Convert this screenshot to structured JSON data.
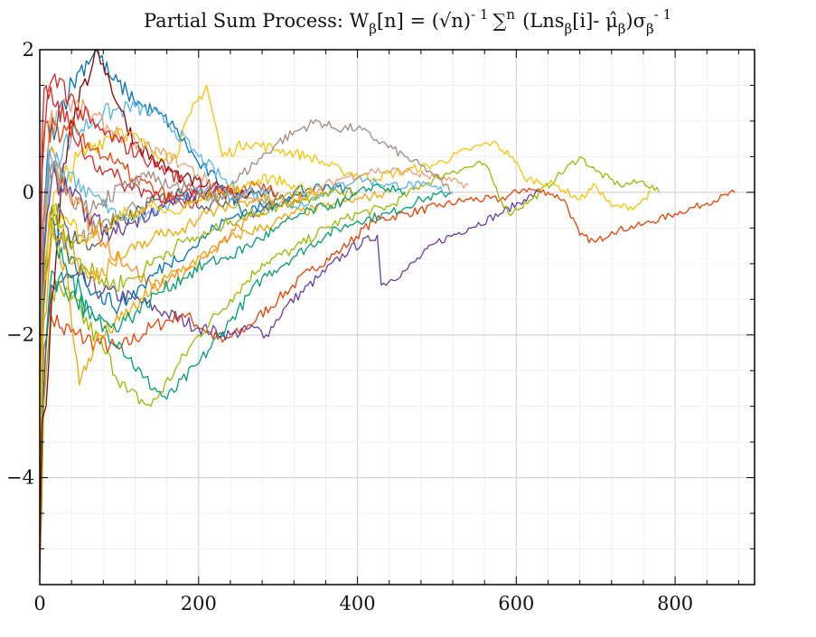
{
  "chart_data": {
    "type": "line",
    "title": "Partial Sum Process: W",
    "title_parts": {
      "w_sub": "β",
      "bracket_n": "[n] = (√n)",
      "exp1": "- 1",
      "sum": "∑",
      "sum_sup": "n",
      "lns": "(Lns",
      "lns_sub": "β",
      "bracket_i": "[i]- μ̂",
      "mu_sub": "β",
      "sigma": ")σ",
      "sigma_sub": "β",
      "exp2": "- 1"
    },
    "xlabel": "",
    "ylabel": "",
    "xlim": [
      0,
      900
    ],
    "ylim": [
      -5.5,
      2.0
    ],
    "x_ticks": [
      0,
      200,
      400,
      600,
      800
    ],
    "x_tick_labels": [
      "0",
      "200",
      "400",
      "600",
      "800"
    ],
    "y_ticks": [
      -4,
      -2,
      0,
      2
    ],
    "y_tick_labels": [
      "−4",
      "−2",
      "0",
      "2"
    ],
    "grid": true,
    "legend": "none",
    "colors": [
      "#0072B2",
      "#F0A500",
      "#009E73",
      "#E84000",
      "#6A3D9A",
      "#8B0000",
      "#56B4E9",
      "#F5C400",
      "#9EB800",
      "#A08B80",
      "#E8A070",
      "#D62728",
      "#FF8C1A",
      "#5A5A5A"
    ],
    "series": [
      {
        "color": "#E84000",
        "x": [
          0,
          5,
          12,
          25,
          45,
          70,
          100,
          140,
          180,
          230,
          260,
          300,
          340,
          380,
          420,
          460,
          500,
          540,
          580,
          610,
          640,
          660,
          680,
          700,
          720,
          760,
          800,
          840,
          875
        ],
        "y": [
          -5.3,
          -2.8,
          -1.6,
          -1.9,
          -2.0,
          -2.1,
          -2.2,
          -1.9,
          -1.7,
          -2.1,
          -1.9,
          -1.5,
          -1.1,
          -0.8,
          -0.4,
          -0.3,
          -0.2,
          -0.1,
          -0.1,
          0.05,
          0.0,
          -0.1,
          -0.6,
          -0.7,
          -0.55,
          -0.45,
          -0.3,
          -0.15,
          0.0
        ]
      },
      {
        "color": "#6A3D9A",
        "x": [
          0,
          6,
          15,
          40,
          80,
          120,
          160,
          200,
          240,
          270,
          285,
          310,
          350,
          390,
          425,
          430,
          460,
          500,
          540,
          580,
          610,
          630
        ],
        "y": [
          -4.8,
          -2.5,
          -1.3,
          -1.2,
          -1.4,
          -1.5,
          -1.7,
          -1.9,
          -2.0,
          -1.9,
          -2.0,
          -1.6,
          -1.2,
          -0.8,
          -0.6,
          -1.3,
          -1.1,
          -0.7,
          -0.5,
          -0.3,
          -0.1,
          0.0
        ]
      },
      {
        "color": "#9EB800",
        "x": [
          0,
          5,
          15,
          40,
          80,
          110,
          140,
          170,
          200,
          240,
          280,
          320,
          360,
          400,
          440,
          480,
          520,
          560,
          590,
          620,
          650,
          680,
          700,
          730,
          760,
          780
        ],
        "y": [
          -5.1,
          -3.0,
          -1.4,
          -1.5,
          -2.2,
          -2.8,
          -3.0,
          -2.5,
          -2.0,
          -1.5,
          -1.0,
          -0.8,
          -0.5,
          -0.3,
          -0.2,
          0.1,
          0.3,
          0.4,
          -0.3,
          -0.1,
          0.2,
          0.5,
          0.3,
          0.1,
          0.15,
          0.0
        ]
      },
      {
        "color": "#009E73",
        "x": [
          0,
          5,
          15,
          40,
          70,
          100,
          130,
          160,
          200,
          240,
          280,
          320,
          360,
          400,
          440,
          480,
          520
        ],
        "y": [
          -4.0,
          -2.2,
          -1.1,
          -1.4,
          -1.8,
          -2.1,
          -2.6,
          -2.9,
          -2.4,
          -1.8,
          -1.2,
          -0.9,
          -0.6,
          -0.4,
          -0.3,
          -0.1,
          0.0
        ]
      },
      {
        "color": "#F5C400",
        "x": [
          0,
          4,
          12,
          30,
          60,
          100,
          140,
          170,
          190,
          210,
          230,
          260,
          300,
          340,
          380,
          420,
          460,
          500,
          540,
          570,
          595,
          610,
          650,
          680,
          700,
          720,
          750,
          770
        ],
        "y": [
          -3.8,
          -1.8,
          -0.3,
          0.2,
          0.6,
          0.9,
          0.6,
          0.5,
          1.1,
          1.5,
          0.5,
          0.7,
          0.6,
          0.5,
          0.3,
          0.2,
          0.3,
          0.4,
          0.6,
          0.7,
          0.5,
          0.2,
          0.1,
          -0.1,
          0.1,
          -0.2,
          -0.2,
          0.0
        ]
      },
      {
        "color": "#A08B80",
        "x": [
          0,
          5,
          15,
          40,
          80,
          120,
          160,
          200,
          240,
          270,
          300,
          330,
          350,
          370,
          400,
          430,
          460,
          490,
          520
        ],
        "y": [
          -3.2,
          -1.5,
          -0.6,
          -0.8,
          -0.4,
          -0.2,
          -0.1,
          0.0,
          0.1,
          0.4,
          0.7,
          0.9,
          1.0,
          0.9,
          0.9,
          0.7,
          0.5,
          0.3,
          0.0
        ]
      },
      {
        "color": "#0072B2",
        "x": [
          0,
          4,
          12,
          30,
          50,
          70,
          90,
          110,
          130,
          150,
          170,
          200,
          230,
          260,
          290,
          320,
          360,
          400
        ],
        "y": [
          -3.0,
          -0.8,
          0.8,
          1.3,
          1.7,
          2.0,
          1.6,
          1.4,
          1.2,
          1.1,
          0.9,
          0.4,
          0.1,
          -0.3,
          -0.2,
          0.0,
          0.1,
          0.0
        ]
      },
      {
        "color": "#56B4E9",
        "x": [
          0,
          5,
          15,
          40,
          80,
          120,
          160,
          200,
          240,
          280,
          320,
          360,
          400,
          440,
          480,
          520
        ],
        "y": [
          -2.9,
          -1.0,
          0.4,
          0.8,
          1.1,
          1.2,
          1.0,
          0.5,
          0.1,
          -0.1,
          -0.2,
          0.0,
          0.2,
          0.1,
          0.1,
          0.0
        ]
      },
      {
        "color": "#8B0000",
        "x": [
          0,
          3,
          8,
          15,
          30,
          45,
          60,
          70,
          80,
          100,
          120,
          150,
          180,
          210,
          240,
          270
        ],
        "y": [
          -5.0,
          -3.2,
          -3.0,
          -1.5,
          0.4,
          1.2,
          1.5,
          2.1,
          1.8,
          1.2,
          0.7,
          0.4,
          0.2,
          0.1,
          0.0,
          0.0
        ]
      },
      {
        "color": "#F0A500",
        "x": [
          0,
          5,
          15,
          35,
          50,
          70,
          100,
          130,
          160,
          190,
          220,
          250,
          280,
          320,
          360,
          400,
          440
        ],
        "y": [
          -3.6,
          -1.8,
          -0.6,
          -1.2,
          -2.7,
          -2.1,
          -1.8,
          -1.5,
          -1.2,
          -1.0,
          -0.8,
          -0.6,
          -0.5,
          -0.3,
          -0.2,
          -0.1,
          0.0
        ]
      },
      {
        "color": "#E8A070",
        "x": [
          0,
          4,
          12,
          30,
          60,
          100,
          140,
          180,
          220,
          260,
          300,
          340,
          380,
          420,
          460,
          500,
          540
        ],
        "y": [
          -2.4,
          -0.6,
          0.9,
          1.3,
          1.1,
          0.8,
          0.6,
          0.4,
          0.1,
          -0.1,
          -0.2,
          0.0,
          0.2,
          0.3,
          0.3,
          0.2,
          0.1
        ]
      },
      {
        "color": "#D62728",
        "x": [
          0,
          3,
          10,
          25,
          45,
          70,
          100,
          130,
          160,
          190,
          220,
          250
        ],
        "y": [
          -2.0,
          0.3,
          1.4,
          1.6,
          1.2,
          0.9,
          0.7,
          0.5,
          0.3,
          0.1,
          0.0,
          0.0
        ]
      },
      {
        "color": "#5A5A5A",
        "x": [
          0,
          5,
          15,
          35,
          60,
          90,
          120,
          150,
          180,
          210,
          240,
          270,
          300
        ],
        "y": [
          -2.6,
          -1.2,
          -0.2,
          -0.5,
          -0.8,
          -0.5,
          -0.3,
          -0.1,
          0.0,
          -0.2,
          -0.1,
          0.0,
          0.0
        ]
      },
      {
        "color": "#FF8C1A",
        "x": [
          0,
          4,
          12,
          30,
          55,
          80,
          110,
          140,
          170,
          200,
          230,
          260,
          290,
          320,
          360
        ],
        "y": [
          -3.4,
          -1.4,
          0.5,
          0.2,
          -0.3,
          -0.7,
          -1.0,
          -1.3,
          -1.2,
          -1.0,
          -0.7,
          -0.4,
          -0.2,
          -0.1,
          0.0
        ]
      },
      {
        "color": "#0072B2",
        "x": [
          0,
          5,
          15,
          40,
          70,
          100,
          130,
          160,
          190,
          220,
          250,
          280,
          310,
          340
        ],
        "y": [
          -3.3,
          -1.6,
          -0.4,
          -0.9,
          -1.4,
          -1.6,
          -1.3,
          -1.0,
          -0.8,
          -0.5,
          -0.3,
          -0.2,
          -0.1,
          0.0
        ]
      },
      {
        "color": "#009E73",
        "x": [
          0,
          4,
          12,
          30,
          60,
          90,
          120,
          150,
          180,
          210,
          240,
          270,
          300,
          330,
          360,
          390,
          420,
          460
        ],
        "y": [
          -3.1,
          -1.3,
          -0.5,
          -1.0,
          -1.6,
          -1.9,
          -1.7,
          -1.4,
          -1.2,
          -1.0,
          -0.9,
          -0.7,
          -0.5,
          -0.3,
          -0.2,
          -0.1,
          0.1,
          0.0
        ]
      },
      {
        "color": "#E84000",
        "x": [
          0,
          3,
          10,
          25,
          45,
          70,
          95,
          120,
          150,
          180,
          210,
          240,
          270,
          300
        ],
        "y": [
          -1.8,
          0.5,
          1.0,
          0.7,
          0.9,
          0.6,
          0.4,
          0.2,
          0.0,
          -0.2,
          -0.1,
          0.0,
          0.1,
          0.0
        ]
      },
      {
        "color": "#9EB800",
        "x": [
          0,
          5,
          15,
          35,
          60,
          90,
          120,
          150,
          180,
          210,
          240,
          270,
          300,
          330,
          360,
          400
        ],
        "y": [
          -2.7,
          -1.1,
          -0.2,
          -0.6,
          -1.1,
          -1.3,
          -1.2,
          -0.9,
          -0.7,
          -0.6,
          -0.4,
          -0.3,
          -0.2,
          -0.1,
          0.0,
          0.0
        ]
      },
      {
        "color": "#56B4E9",
        "x": [
          0,
          4,
          12,
          30,
          55,
          80,
          110,
          140,
          170,
          200,
          230,
          260,
          290
        ],
        "y": [
          -2.2,
          -0.4,
          0.6,
          0.3,
          0.1,
          -0.2,
          -0.4,
          -0.3,
          -0.1,
          0.0,
          -0.1,
          0.0,
          0.0
        ]
      },
      {
        "color": "#6A3D9A",
        "x": [
          0,
          5,
          15,
          35,
          60,
          90,
          120,
          150,
          180,
          210,
          240
        ],
        "y": [
          -2.5,
          -0.9,
          0.2,
          0.0,
          -0.3,
          -0.6,
          -0.4,
          -0.2,
          -0.1,
          0.0,
          0.0
        ]
      },
      {
        "color": "#F5C400",
        "x": [
          0,
          4,
          12,
          30,
          55,
          80,
          110,
          140,
          170,
          200,
          230,
          260,
          290,
          320,
          350
        ],
        "y": [
          -3.5,
          -1.5,
          -0.3,
          -0.4,
          -0.6,
          -0.5,
          -0.3,
          -0.2,
          -0.3,
          -0.1,
          0.0,
          0.1,
          0.2,
          0.1,
          0.0
        ]
      },
      {
        "color": "#D62728",
        "x": [
          0,
          3,
          8,
          20,
          40,
          60,
          85,
          110,
          140,
          170,
          200
        ],
        "y": [
          -1.5,
          0.8,
          1.5,
          1.2,
          0.9,
          0.5,
          0.3,
          0.1,
          0.0,
          -0.1,
          0.0
        ]
      },
      {
        "color": "#A08B80",
        "x": [
          0,
          4,
          12,
          30,
          55,
          80,
          110,
          140,
          170,
          200,
          230,
          260
        ],
        "y": [
          -2.0,
          -0.5,
          0.4,
          0.1,
          -0.2,
          -0.1,
          0.1,
          0.2,
          0.1,
          0.0,
          -0.1,
          0.0
        ]
      },
      {
        "color": "#F0A500",
        "x": [
          0,
          5,
          15,
          35,
          60,
          90,
          120,
          150,
          180,
          210,
          240,
          270,
          300,
          330
        ],
        "y": [
          -2.9,
          -1.3,
          -0.4,
          -0.8,
          -1.2,
          -1.0,
          -0.8,
          -0.6,
          -0.5,
          -0.3,
          -0.2,
          -0.1,
          -0.1,
          0.0
        ]
      }
    ]
  }
}
